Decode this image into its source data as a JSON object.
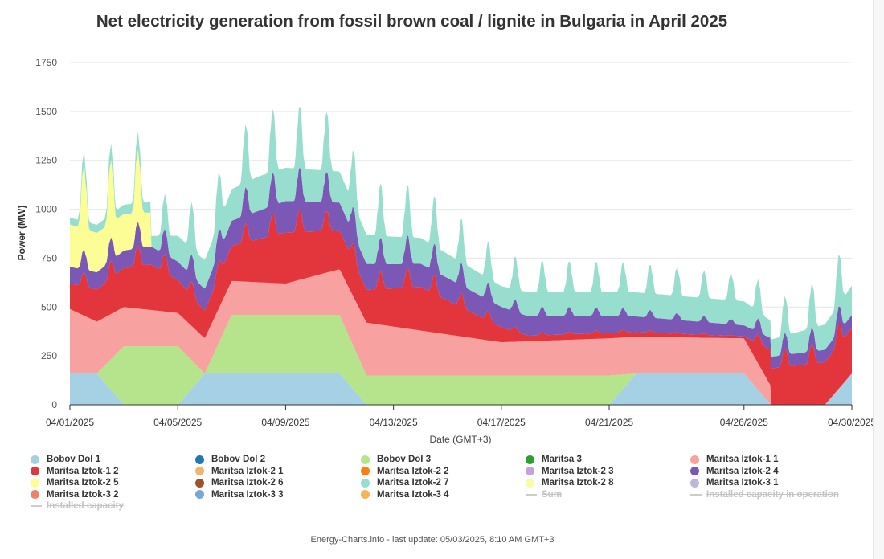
{
  "chart_data": {
    "type": "area",
    "stacked": true,
    "title": "Net electricity generation from fossil brown coal / lignite in Bulgaria in April 2025",
    "xlabel": "Date (GMT+3)",
    "ylabel": "Power (MW)",
    "ylim": [
      0,
      1750
    ],
    "yticks": [
      0,
      250,
      500,
      750,
      1000,
      1250,
      1500,
      1750
    ],
    "xticks": [
      "04/01/2025",
      "04/05/2025",
      "04/09/2025",
      "04/13/2025",
      "04/17/2025",
      "04/21/2025",
      "04/26/2025",
      "04/30/2025"
    ],
    "x_start": "04/01/2025",
    "x_end": "04/30/2025",
    "grid": true,
    "legend_position": "bottom",
    "series": [
      {
        "name": "Bobov Dol 1",
        "color": "#a6d1e5",
        "visible": true,
        "points": [
          [
            "04/01/2025",
            160
          ],
          [
            "04/02/2025",
            160
          ],
          [
            "04/03/2025",
            0
          ],
          [
            "04/05/2025",
            0
          ],
          [
            "04/06/2025",
            160
          ],
          [
            "04/11/2025",
            160
          ],
          [
            "04/12/2025",
            0
          ],
          [
            "04/21/2025",
            0
          ],
          [
            "04/22/2025",
            160
          ],
          [
            "04/26/2025",
            160
          ],
          [
            "04/27/2025",
            0
          ],
          [
            "04/29/2025",
            0
          ],
          [
            "04/30/2025",
            160
          ],
          [
            "04/30/2025",
            160
          ]
        ]
      },
      {
        "name": "Bobov Dol 2",
        "color": "#1f77b4",
        "visible": true,
        "points": []
      },
      {
        "name": "Bobov Dol 3",
        "color": "#b5e48c",
        "visible": true,
        "points": [
          [
            "04/01/2025",
            0
          ],
          [
            "04/02/2025",
            0
          ],
          [
            "04/03/2025",
            300
          ],
          [
            "04/05/2025",
            300
          ],
          [
            "04/06/2025",
            0
          ],
          [
            "04/06/2025",
            0
          ],
          [
            "04/07/2025",
            300
          ],
          [
            "04/11/2025",
            300
          ],
          [
            "04/12/2025",
            150
          ],
          [
            "04/21/2025",
            150
          ],
          [
            "04/22/2025",
            0
          ],
          [
            "04/30/2025",
            0
          ]
        ]
      },
      {
        "name": "Maritsa 3",
        "color": "#2ca02c",
        "visible": true,
        "points": []
      },
      {
        "name": "Maritsa Iztok-1 1",
        "color": "#f7a1a1",
        "visible": true,
        "points": [
          [
            "04/01/2025",
            330
          ],
          [
            "04/03/2025",
            200
          ],
          [
            "04/05/2025",
            170
          ],
          [
            "04/06/2025",
            180
          ],
          [
            "04/09/2025",
            160
          ],
          [
            "04/12/2025",
            270
          ],
          [
            "04/17/2025",
            170
          ],
          [
            "04/21/2025",
            190
          ],
          [
            "04/26/2025",
            180
          ],
          [
            "04/27/2025",
            95
          ],
          [
            "04/27/2025",
            0
          ],
          [
            "04/30/2025",
            0
          ]
        ]
      },
      {
        "name": "Maritsa Iztok-1 2",
        "color": "#e2363c",
        "visible": true,
        "points": [
          [
            "04/01/2025",
            140
          ],
          [
            "04/04/2025",
            250
          ],
          [
            "04/05/2025",
            180
          ],
          [
            "04/06/2025",
            150
          ],
          [
            "04/09/2025",
            280
          ],
          [
            "04/12/2025",
            180
          ],
          [
            "04/14/2025",
            240
          ],
          [
            "04/18/2025",
            30
          ],
          [
            "04/21/2025",
            30
          ],
          [
            "04/26/2025",
            10
          ],
          [
            "04/27/2025",
            200
          ],
          [
            "04/30/2025",
            250
          ]
        ]
      },
      {
        "name": "Maritsa Iztok-2 1",
        "color": "#f3b56e",
        "visible": true,
        "points": []
      },
      {
        "name": "Maritsa Iztok-2 2",
        "color": "#ff7f0e",
        "visible": true,
        "points": []
      },
      {
        "name": "Maritsa Iztok-2 3",
        "color": "#c5a3d8",
        "visible": true,
        "points": []
      },
      {
        "name": "Maritsa Iztok-2 4",
        "color": "#7b58b5",
        "visible": true,
        "points": [
          [
            "04/01/2025",
            90
          ],
          [
            "04/05/2025",
            100
          ],
          [
            "04/09/2025",
            170
          ],
          [
            "04/13/2025",
            130
          ],
          [
            "04/17/2025",
            110
          ],
          [
            "04/21/2025",
            90
          ],
          [
            "04/26/2025",
            60
          ],
          [
            "04/30/2025",
            70
          ]
        ]
      },
      {
        "name": "Maritsa Iztok-2 5",
        "color": "#fdfd96",
        "visible": true,
        "points": [
          [
            "04/01/2025",
            250
          ],
          [
            "04/04/2025",
            200
          ],
          [
            "04/04/2025",
            0
          ],
          [
            "04/30/2025",
            0
          ]
        ]
      },
      {
        "name": "Maritsa Iztok-2 6",
        "color": "#a0522d",
        "visible": true,
        "points": []
      },
      {
        "name": "Maritsa Iztok-2 7",
        "color": "#98dece",
        "visible": true,
        "points": [
          [
            "04/01/2025",
            40
          ],
          [
            "04/04/2025",
            60
          ],
          [
            "04/05/2025",
            150
          ],
          [
            "04/08/2025",
            200
          ],
          [
            "04/11/2025",
            180
          ],
          [
            "04/14/2025",
            150
          ],
          [
            "04/17/2025",
            120
          ],
          [
            "04/18/2025",
            140
          ],
          [
            "04/21/2025",
            140
          ],
          [
            "04/26/2025",
            140
          ],
          [
            "04/27/2025",
            100
          ],
          [
            "04/30/2025",
            170
          ]
        ]
      },
      {
        "name": "Maritsa Iztok-2 8",
        "color": "#fafaaa",
        "visible": true,
        "points": []
      },
      {
        "name": "Maritsa Iztok-3 1",
        "color": "#bcb8dd",
        "visible": true,
        "points": []
      },
      {
        "name": "Maritsa Iztok-3 2",
        "color": "#f08070",
        "visible": true,
        "points": []
      },
      {
        "name": "Maritsa Iztok-3 3",
        "color": "#7aa6d6",
        "visible": true,
        "points": []
      },
      {
        "name": "Maritsa Iztok-3 4",
        "color": "#f4b459",
        "visible": true,
        "points": []
      },
      {
        "name": "Sum",
        "visible": false,
        "points": []
      },
      {
        "name": "Installed capacity in operation",
        "visible": false,
        "points": []
      },
      {
        "name": "Installed capacity",
        "visible": false,
        "points": []
      }
    ]
  },
  "footer": "Energy-Charts.info - last update: 05/03/2025, 8:10 AM GMT+3"
}
